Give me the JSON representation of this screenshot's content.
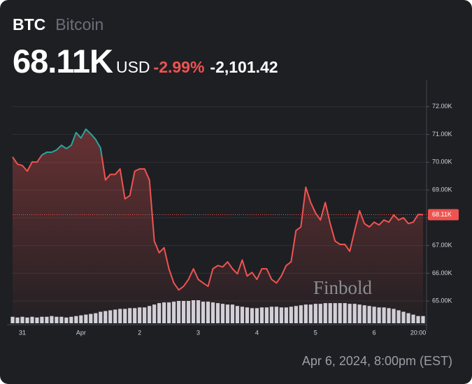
{
  "chart_data": {
    "type": "line",
    "ticker": "BTC",
    "name": "Bitcoin",
    "price": {
      "value": 68.11,
      "label": "68.11K"
    },
    "currency": "USD",
    "change_pct": {
      "value": -2.99,
      "label": "-2.99%"
    },
    "change": {
      "value": -2.10142,
      "label": "-2,101.42"
    },
    "timestamp": "Apr 6, 2024, 8:00pm (EST)",
    "watermark": "Finbold",
    "categories": [
      null,
      null,
      "31",
      null,
      null,
      null,
      null,
      null,
      null,
      null,
      null,
      null,
      null,
      null,
      "Apr",
      null,
      null,
      null,
      null,
      null,
      null,
      null,
      null,
      null,
      null,
      null,
      "2",
      null,
      null,
      null,
      null,
      null,
      null,
      null,
      null,
      null,
      null,
      null,
      "3",
      null,
      null,
      null,
      null,
      null,
      null,
      null,
      null,
      null,
      null,
      null,
      "4",
      null,
      null,
      null,
      null,
      null,
      null,
      null,
      null,
      null,
      null,
      null,
      "5",
      null,
      null,
      null,
      null,
      null,
      null,
      null,
      null,
      null,
      null,
      null,
      "6",
      null,
      null,
      null,
      null,
      null,
      null,
      null,
      null,
      "20:00",
      null
    ],
    "series": [
      {
        "color": "#ef5350",
        "up_color": "#26a69a",
        "values": [
          70.19,
          69.93,
          69.88,
          69.68,
          70.01,
          70.0,
          70.26,
          70.36,
          70.36,
          70.44,
          70.61,
          70.49,
          70.61,
          71.07,
          70.87,
          71.19,
          71.02,
          70.82,
          70.51,
          69.36,
          69.56,
          69.56,
          69.76,
          68.68,
          68.8,
          69.68,
          69.76,
          69.76,
          69.36,
          67.16,
          66.74,
          66.92,
          66.16,
          65.65,
          65.4,
          65.53,
          65.78,
          66.16,
          65.78,
          65.65,
          65.53,
          66.16,
          66.28,
          66.23,
          66.41,
          66.16,
          65.98,
          66.48,
          65.9,
          66.03,
          65.78,
          66.16,
          66.16,
          65.78,
          65.65,
          65.9,
          66.28,
          66.41,
          67.54,
          67.67,
          69.1,
          68.55,
          68.17,
          67.92,
          68.55,
          67.79,
          67.16,
          67.04,
          67.04,
          66.79,
          67.54,
          68.25,
          67.79,
          67.67,
          67.84,
          67.74,
          67.92,
          67.84,
          68.1,
          67.92,
          68.0,
          67.79,
          67.84,
          68.12,
          68.11
        ]
      }
    ],
    "volume": {
      "color": "#d1d4dc",
      "values": [
        9,
        8,
        9,
        8,
        9,
        8,
        9,
        9,
        10,
        9,
        9,
        8,
        9,
        10,
        11,
        12,
        13,
        14,
        16,
        17,
        18,
        19,
        20,
        20,
        21,
        21,
        22,
        22,
        24,
        26,
        28,
        29,
        29,
        30,
        31,
        31,
        31,
        32,
        32,
        30,
        30,
        29,
        28,
        27,
        26,
        26,
        24,
        23,
        22,
        21,
        21,
        22,
        22,
        23,
        23,
        22,
        22,
        23,
        24,
        25,
        26,
        26,
        27,
        27,
        28,
        28,
        28,
        28,
        28,
        27,
        27,
        26,
        25,
        24,
        23,
        22,
        22,
        21,
        20,
        18,
        16,
        14,
        12,
        10,
        10
      ]
    },
    "ylim": [
      64.2,
      72.95
    ],
    "yticks": [
      {
        "value": 65,
        "label": "65.00K"
      },
      {
        "value": 66,
        "label": "66.00K"
      },
      {
        "value": 67,
        "label": "67.00K"
      },
      {
        "value": 68,
        "label": "68.00K"
      },
      {
        "value": 69,
        "label": "69.00K"
      },
      {
        "value": 70,
        "label": "70.00K"
      },
      {
        "value": 71,
        "label": "71.00K"
      },
      {
        "value": 72,
        "label": "72.00K"
      }
    ],
    "grid": true
  }
}
